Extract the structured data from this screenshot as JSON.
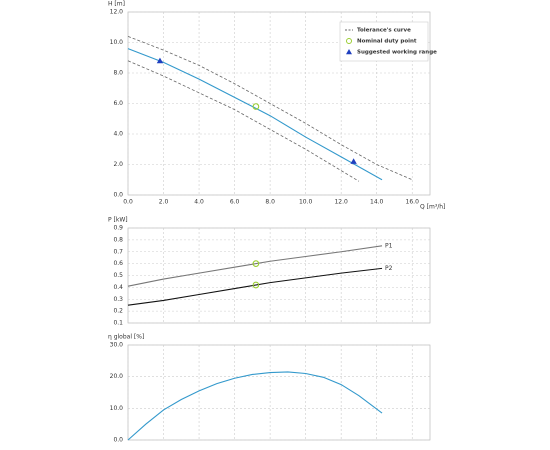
{
  "chart_data": [
    {
      "type": "line",
      "ylabel": "H [m]",
      "xlabel": "Q [m³/h]",
      "xlim": [
        0,
        17
      ],
      "ylim": [
        0,
        12
      ],
      "grid": true,
      "legend": "upper right",
      "xticks": [
        {
          "value": 0,
          "label": "0.0"
        },
        {
          "value": 2,
          "label": "2.0"
        },
        {
          "value": 4,
          "label": "4.0"
        },
        {
          "value": 6,
          "label": "6.0"
        },
        {
          "value": 8,
          "label": "8.0"
        },
        {
          "value": 10,
          "label": "10.0"
        },
        {
          "value": 12,
          "label": "12.0"
        },
        {
          "value": 14,
          "label": "14.0"
        },
        {
          "value": 16,
          "label": "16.0"
        }
      ],
      "yticks": [
        {
          "value": 0,
          "label": "0.0"
        },
        {
          "value": 2,
          "label": "2.0"
        },
        {
          "value": 4,
          "label": "4.0"
        },
        {
          "value": 6,
          "label": "6.0"
        },
        {
          "value": 8,
          "label": "8.0"
        },
        {
          "value": 10,
          "label": "10.0"
        },
        {
          "value": 12,
          "label": "12.0"
        }
      ],
      "series": [
        {
          "name": "Tolerance's curve",
          "color": "#666666",
          "dash": true,
          "x": [
            0,
            2,
            4,
            6,
            8,
            10,
            12,
            14,
            16
          ],
          "values": [
            10.4,
            9.5,
            8.5,
            7.3,
            6.0,
            4.7,
            3.3,
            2.0,
            1.0
          ]
        },
        {
          "color": "#666666",
          "dash": true,
          "x": [
            0,
            2,
            4,
            6,
            8,
            10,
            12,
            13
          ],
          "values": [
            8.8,
            7.8,
            6.7,
            5.6,
            4.3,
            3.0,
            1.6,
            0.9
          ]
        },
        {
          "color": "#3399cc",
          "x": [
            0,
            2,
            4,
            6,
            8,
            10,
            12,
            14.3
          ],
          "values": [
            9.6,
            8.7,
            7.6,
            6.4,
            5.2,
            3.8,
            2.5,
            1.0
          ]
        },
        {
          "name": "Nominal duty point",
          "color": "#9acd32",
          "marker": "circle",
          "x": [
            7.2
          ],
          "values": [
            5.8
          ]
        },
        {
          "name": "Suggested working range",
          "color": "#1f3fbf",
          "marker": "triangle",
          "x": [
            1.8,
            12.7
          ],
          "values": [
            8.8,
            2.2
          ]
        }
      ]
    },
    {
      "type": "line",
      "ylabel": "P [kW]",
      "xlim": [
        0,
        17
      ],
      "ylim": [
        0.1,
        0.9
      ],
      "grid": true,
      "xtick_labels": false,
      "xticks": [
        0,
        2,
        4,
        6,
        8,
        10,
        12,
        14,
        16
      ],
      "yticks": [
        0.1,
        0.2,
        0.3,
        0.4,
        0.5,
        0.6,
        0.7,
        0.8,
        0.9
      ],
      "series": [
        {
          "name": "P1",
          "color": "#777777",
          "end_label": true,
          "x": [
            0,
            2,
            4,
            6,
            8,
            10,
            12,
            14.3
          ],
          "values": [
            0.41,
            0.47,
            0.52,
            0.57,
            0.62,
            0.66,
            0.7,
            0.75
          ]
        },
        {
          "name": "P2",
          "color": "#111111",
          "end_label": true,
          "x": [
            0,
            2,
            4,
            6,
            8,
            10,
            12,
            14.3
          ],
          "values": [
            0.25,
            0.29,
            0.34,
            0.39,
            0.44,
            0.48,
            0.52,
            0.56
          ]
        },
        {
          "color": "#9acd32",
          "marker": "circle",
          "x": [
            7.2,
            7.2
          ],
          "values": [
            0.6,
            0.42
          ]
        }
      ]
    },
    {
      "type": "line",
      "ylabel": "η global [%]",
      "xlim": [
        0,
        17
      ],
      "ylim": [
        0,
        30
      ],
      "grid": true,
      "xtick_labels": false,
      "xticks": [
        0,
        2,
        4,
        6,
        8,
        10,
        12,
        14,
        16
      ],
      "yticks": [
        {
          "value": 0,
          "label": "0.0"
        },
        {
          "value": 10,
          "label": "10.0"
        },
        {
          "value": 20,
          "label": "20.0"
        },
        {
          "value": 30,
          "label": "30.0"
        }
      ],
      "series": [
        {
          "color": "#3399cc",
          "x": [
            0,
            1,
            2,
            3,
            4,
            5,
            6,
            7,
            8,
            9,
            10,
            11,
            12,
            13,
            14.3
          ],
          "values": [
            0,
            5.0,
            9.5,
            12.8,
            15.5,
            17.8,
            19.5,
            20.7,
            21.3,
            21.5,
            21.0,
            19.8,
            17.5,
            14.0,
            8.5
          ]
        }
      ]
    }
  ]
}
